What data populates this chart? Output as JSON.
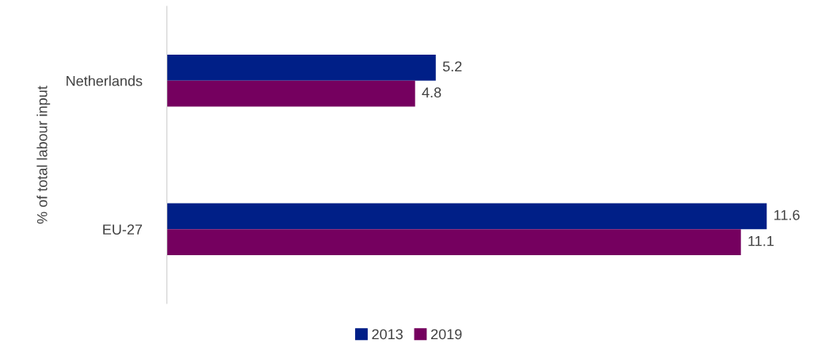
{
  "chart_data": {
    "type": "bar",
    "orientation": "horizontal",
    "ylabel": "% of total labour input",
    "categories": [
      "Netherlands",
      "EU-27"
    ],
    "series": [
      {
        "name": "2013",
        "color": "#001f87",
        "values": [
          5.2,
          11.6
        ]
      },
      {
        "name": "2019",
        "color": "#75005f",
        "values": [
          4.8,
          11.1
        ]
      }
    ],
    "data_labels": true,
    "tick_labels": "y",
    "grid": false,
    "legend": "bottom"
  }
}
